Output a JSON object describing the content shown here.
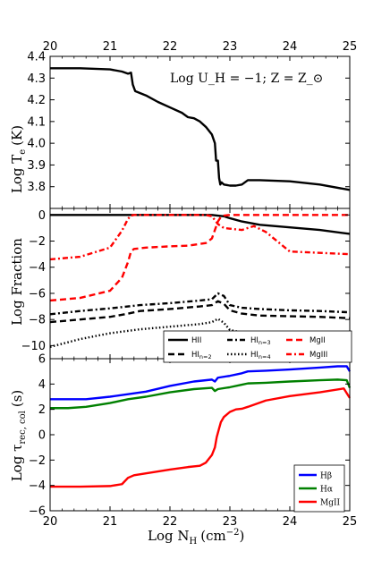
{
  "figure": {
    "top_axis_ticks": [
      "20",
      "21",
      "22",
      "23",
      "24",
      "25"
    ],
    "xlabel_prefix": "Log N",
    "xlabel_sub": "H",
    "xlabel_unit": "(cm",
    "xlabel_exp": "−2",
    "xlabel_close": ")"
  },
  "chart_data": [
    {
      "type": "line",
      "panel": "temperature",
      "ylabel_prefix": "Log T",
      "ylabel_sub": "e",
      "ylabel_unit": "(K)",
      "annotation": "Log U_H = −1; Z = Z_⊙",
      "xlim": [
        20,
        25
      ],
      "ylim": [
        3.7,
        4.4
      ],
      "x_ticks": [
        "20",
        "21",
        "22",
        "23",
        "24",
        "25"
      ],
      "y_ticks": [
        "3.8",
        "3.9",
        "4.0",
        "4.1",
        "4.2",
        "4.3",
        "4.4"
      ],
      "series": [
        {
          "color": "#000000",
          "style": "solid",
          "x": [
            20.0,
            20.5,
            21.0,
            21.2,
            21.3,
            21.35,
            21.38,
            21.42,
            21.6,
            21.8,
            22.0,
            22.2,
            22.3,
            22.4,
            22.5,
            22.6,
            22.7,
            22.75,
            22.77,
            22.8,
            22.82,
            22.84,
            22.86,
            22.9,
            23.0,
            23.1,
            23.2,
            23.3,
            23.5,
            24.0,
            24.5,
            25.0
          ],
          "y": [
            4.345,
            4.345,
            4.34,
            4.33,
            4.32,
            4.325,
            4.27,
            4.24,
            4.22,
            4.19,
            4.165,
            4.14,
            4.12,
            4.115,
            4.1,
            4.075,
            4.04,
            4.0,
            3.92,
            3.92,
            3.84,
            3.81,
            3.82,
            3.81,
            3.805,
            3.805,
            3.81,
            3.83,
            3.83,
            3.825,
            3.81,
            3.785
          ]
        }
      ]
    },
    {
      "type": "line",
      "panel": "ionization-fraction",
      "ylabel": "Log Fraction",
      "xlim": [
        20,
        25
      ],
      "ylim": [
        -11,
        0.5
      ],
      "x_ticks": [
        "20",
        "21",
        "22",
        "23",
        "24",
        "25"
      ],
      "y_ticks": [
        "−10",
        "−8",
        "−6",
        "−4",
        "−2",
        "0"
      ],
      "legend_location": "lower center",
      "series": [
        {
          "name": "HII",
          "color": "#000000",
          "style": "solid",
          "x": [
            20,
            21,
            22,
            22.7,
            22.9,
            23.0,
            23.2,
            23.5,
            24.0,
            24.5,
            25.0
          ],
          "y": [
            0,
            0,
            0,
            0,
            -0.1,
            -0.25,
            -0.5,
            -0.75,
            -0.95,
            -1.15,
            -1.45
          ]
        },
        {
          "name": "HI_n=2",
          "color": "#000000",
          "style": "dashed",
          "x": [
            20,
            20.5,
            21,
            21.3,
            21.5,
            22.0,
            22.5,
            22.7,
            22.8,
            22.9,
            23.0,
            23.2,
            23.5,
            24.0,
            24.5,
            25.0
          ],
          "y": [
            -8.2,
            -8.0,
            -7.8,
            -7.55,
            -7.35,
            -7.2,
            -7.0,
            -6.9,
            -6.6,
            -6.8,
            -7.3,
            -7.55,
            -7.7,
            -7.75,
            -7.8,
            -7.9
          ]
        },
        {
          "name": "HI_n=3",
          "color": "#000000",
          "style": "dashdot",
          "x": [
            20,
            20.5,
            21,
            21.3,
            21.5,
            22.0,
            22.5,
            22.7,
            22.8,
            22.9,
            23.0,
            23.2,
            23.5,
            24.0,
            24.5,
            25.0
          ],
          "y": [
            -7.6,
            -7.35,
            -7.15,
            -7.0,
            -6.9,
            -6.75,
            -6.55,
            -6.45,
            -6.0,
            -6.2,
            -6.9,
            -7.1,
            -7.2,
            -7.3,
            -7.35,
            -7.45
          ]
        },
        {
          "name": "HI_n=4",
          "color": "#000000",
          "style": "dotted",
          "x": [
            20,
            20.5,
            21,
            21.5,
            22.0,
            22.5,
            22.7,
            22.8,
            22.9,
            23.0,
            23.2,
            23.5,
            24.0,
            24.5,
            25.0
          ],
          "y": [
            -10.1,
            -9.5,
            -9.05,
            -8.75,
            -8.55,
            -8.35,
            -8.2,
            -7.95,
            -8.25,
            -8.8,
            -9.0,
            -9.2,
            -9.4,
            -9.6,
            -9.8
          ]
        },
        {
          "name": "MgII",
          "color": "#ff0000",
          "style": "dashed",
          "x": [
            20,
            20.5,
            21.0,
            21.2,
            21.3,
            21.35,
            21.4,
            21.6,
            22.0,
            22.3,
            22.6,
            22.7,
            22.8,
            22.85,
            22.9,
            23.0,
            24.0,
            25.0
          ],
          "y": [
            -6.55,
            -6.35,
            -5.8,
            -4.8,
            -3.6,
            -2.8,
            -2.6,
            -2.5,
            -2.4,
            -2.35,
            -2.15,
            -1.8,
            -0.5,
            -0.15,
            -0.05,
            0,
            0,
            0
          ]
        },
        {
          "name": "MgIII",
          "color": "#ff0000",
          "style": "dashdot",
          "x": [
            20,
            20.5,
            21.0,
            21.2,
            21.3,
            21.35,
            21.4,
            22.0,
            22.6,
            22.7,
            22.8,
            22.9,
            23.0,
            23.2,
            23.4,
            23.6,
            24.0,
            24.5,
            25.0
          ],
          "y": [
            -3.4,
            -3.2,
            -2.5,
            -1.2,
            -0.3,
            -0.05,
            0,
            0,
            0,
            -0.1,
            -0.7,
            -1.0,
            -1.05,
            -1.15,
            -0.85,
            -1.3,
            -2.8,
            -2.9,
            -3.0
          ]
        }
      ]
    },
    {
      "type": "line",
      "panel": "recombination-collision-timescale",
      "ylabel_prefix": "Log τ",
      "ylabel_sub": "rec, col",
      "ylabel_unit": "(s)",
      "xlim": [
        20,
        25
      ],
      "ylim": [
        -6,
        6
      ],
      "x_ticks": [
        "20",
        "21",
        "22",
        "23",
        "24",
        "25"
      ],
      "y_ticks": [
        "−6",
        "−4",
        "−2",
        "0",
        "2",
        "4",
        "6"
      ],
      "legend_location": "lower right",
      "series": [
        {
          "name": "Hβ",
          "color": "#0000ff",
          "style": "solid",
          "x": [
            20,
            20.3,
            20.6,
            21.0,
            21.3,
            21.6,
            22.0,
            22.4,
            22.7,
            22.75,
            22.8,
            23.0,
            23.2,
            23.3,
            23.6,
            24.0,
            24.5,
            24.8,
            24.95,
            25.0
          ],
          "y": [
            2.8,
            2.8,
            2.8,
            3.0,
            3.2,
            3.4,
            3.85,
            4.2,
            4.35,
            4.2,
            4.5,
            4.65,
            4.85,
            5.0,
            5.05,
            5.15,
            5.3,
            5.4,
            5.4,
            5.0
          ]
        },
        {
          "name": "Hα",
          "color": "#008000",
          "style": "solid",
          "x": [
            20,
            20.3,
            20.6,
            21.0,
            21.3,
            21.6,
            22.0,
            22.4,
            22.7,
            22.75,
            22.8,
            23.0,
            23.2,
            23.3,
            23.6,
            24.0,
            24.5,
            24.8,
            24.95,
            25.0
          ],
          "y": [
            2.1,
            2.1,
            2.2,
            2.5,
            2.8,
            3.0,
            3.35,
            3.6,
            3.7,
            3.45,
            3.6,
            3.75,
            3.95,
            4.05,
            4.1,
            4.2,
            4.3,
            4.35,
            4.3,
            3.7
          ]
        },
        {
          "name": "MgII",
          "color": "#ff0000",
          "style": "solid",
          "x": [
            20,
            20.5,
            21.0,
            21.2,
            21.3,
            21.4,
            21.6,
            22.0,
            22.3,
            22.5,
            22.6,
            22.7,
            22.75,
            22.78,
            22.82,
            22.85,
            22.9,
            23.0,
            23.1,
            23.2,
            23.3,
            23.6,
            24.0,
            24.5,
            24.9,
            25.0
          ],
          "y": [
            -4.1,
            -4.1,
            -4.05,
            -3.9,
            -3.4,
            -3.2,
            -3.05,
            -2.75,
            -2.55,
            -2.45,
            -2.2,
            -1.6,
            -1.0,
            -0.2,
            0.5,
            1.0,
            1.4,
            1.8,
            2.0,
            2.05,
            2.2,
            2.7,
            3.05,
            3.35,
            3.65,
            2.9
          ]
        }
      ]
    }
  ]
}
